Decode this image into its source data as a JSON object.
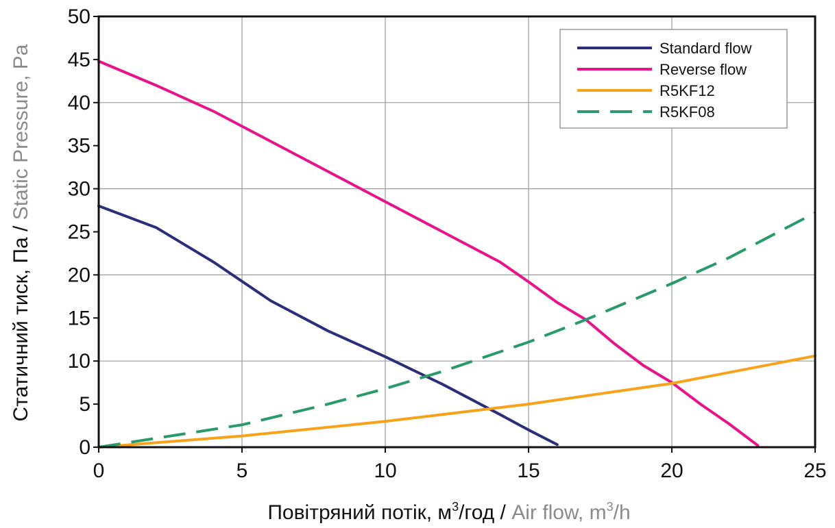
{
  "chart_data": {
    "type": "line",
    "xlim": [
      0,
      25
    ],
    "ylim": [
      0,
      50
    ],
    "x_ticks": [
      "0",
      "5",
      "10",
      "15",
      "20",
      "25"
    ],
    "y_ticks": [
      "0",
      "5",
      "10",
      "15",
      "20",
      "25",
      "30",
      "35",
      "40",
      "45",
      "50"
    ],
    "grid": true,
    "legend_position": "top-right",
    "xlabel": {
      "primary": "Повітряний потік, м",
      "primary_sup": "3",
      "primary_suffix": "/год / ",
      "secondary": "Air flow, m",
      "secondary_sup": "3",
      "secondary_suffix": "/h"
    },
    "ylabel": {
      "primary": "Статичний тиск, Па / ",
      "secondary": "Static Pressure, Pa"
    },
    "series": [
      {
        "name": "Standard flow",
        "color": "#2b2f7a",
        "style": "solid",
        "points": [
          [
            0,
            28
          ],
          [
            2,
            25.5
          ],
          [
            4,
            21.5
          ],
          [
            6,
            17
          ],
          [
            8,
            13.5
          ],
          [
            10,
            10.5
          ],
          [
            12,
            7.3
          ],
          [
            14,
            3.8
          ],
          [
            15,
            2
          ],
          [
            16,
            0.3
          ]
        ]
      },
      {
        "name": "Reverse flow",
        "color": "#e8138a",
        "style": "solid",
        "points": [
          [
            0,
            44.8
          ],
          [
            2,
            42
          ],
          [
            4,
            39
          ],
          [
            6,
            35.5
          ],
          [
            8,
            32
          ],
          [
            10,
            28.5
          ],
          [
            12,
            25
          ],
          [
            14,
            21.5
          ],
          [
            15,
            19.2
          ],
          [
            16,
            16.8
          ],
          [
            17,
            14.8
          ],
          [
            18,
            12
          ],
          [
            19,
            9.5
          ],
          [
            20,
            7.5
          ],
          [
            21,
            5
          ],
          [
            22,
            2.7
          ],
          [
            23,
            0.2
          ]
        ]
      },
      {
        "name": "R5KF12",
        "color": "#f7a21b",
        "style": "solid",
        "points": [
          [
            0,
            0
          ],
          [
            5,
            1.3
          ],
          [
            10,
            3
          ],
          [
            15,
            5
          ],
          [
            20,
            7.4
          ],
          [
            25,
            10.6
          ]
        ]
      },
      {
        "name": "R5KF08",
        "color": "#2a9a6a",
        "style": "dashed",
        "points": [
          [
            0,
            0
          ],
          [
            5,
            2.6
          ],
          [
            8,
            5
          ],
          [
            10,
            6.8
          ],
          [
            12,
            8.8
          ],
          [
            15,
            12.2
          ],
          [
            17,
            14.8
          ],
          [
            20,
            19
          ],
          [
            22,
            22
          ],
          [
            25,
            27.2
          ]
        ]
      }
    ]
  }
}
